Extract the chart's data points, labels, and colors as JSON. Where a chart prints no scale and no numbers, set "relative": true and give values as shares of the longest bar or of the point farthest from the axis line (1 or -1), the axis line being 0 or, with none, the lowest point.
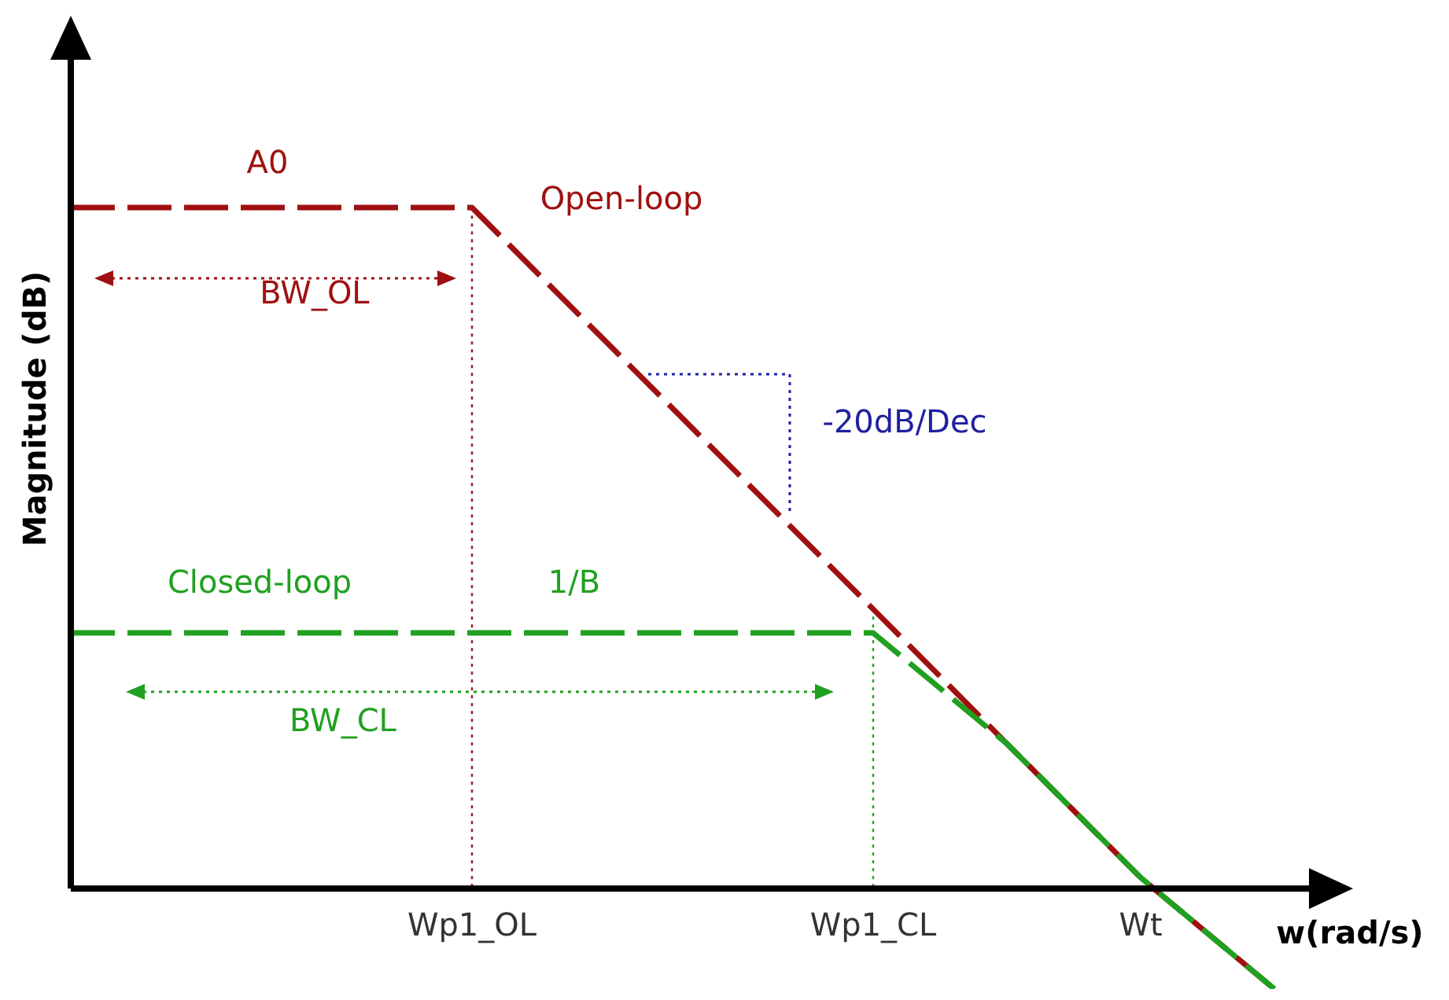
{
  "chart_data": {
    "type": "line",
    "relative": true,
    "xlabel": "w(rad/s)",
    "ylabel": "Magnitude (dB)",
    "categories": [
      null,
      null,
      null,
      "Wp1_OL",
      null,
      null,
      "Wp1_CL",
      null,
      "Wt",
      null
    ],
    "series": [
      {
        "name": "Open-loop",
        "color": "#a01010",
        "values": [
          1,
          1,
          1,
          1,
          0.803,
          0.606,
          0.409,
          0.211,
          0.014,
          -0.15
        ]
      },
      {
        "name": "Closed-loop",
        "color": "#20a020",
        "values": [
          0.374,
          0.374,
          0.374,
          0.374,
          0.374,
          0.374,
          0.374,
          0.211,
          0.014,
          -0.15
        ]
      }
    ],
    "annotations": [
      "A0",
      "BW_OL",
      "-20dB/Dec",
      "1/B",
      "BW_CL"
    ],
    "ref_lines": [
      {
        "axis": "x",
        "value": "Wp1_OL",
        "color": "#a01010",
        "line_style": "dotted"
      },
      {
        "axis": "x",
        "value": "Wp1_CL",
        "color": "#20a020",
        "line_style": "dotted"
      }
    ],
    "line_style": "dashed",
    "marker": "none",
    "legend": false,
    "grid": false
  }
}
